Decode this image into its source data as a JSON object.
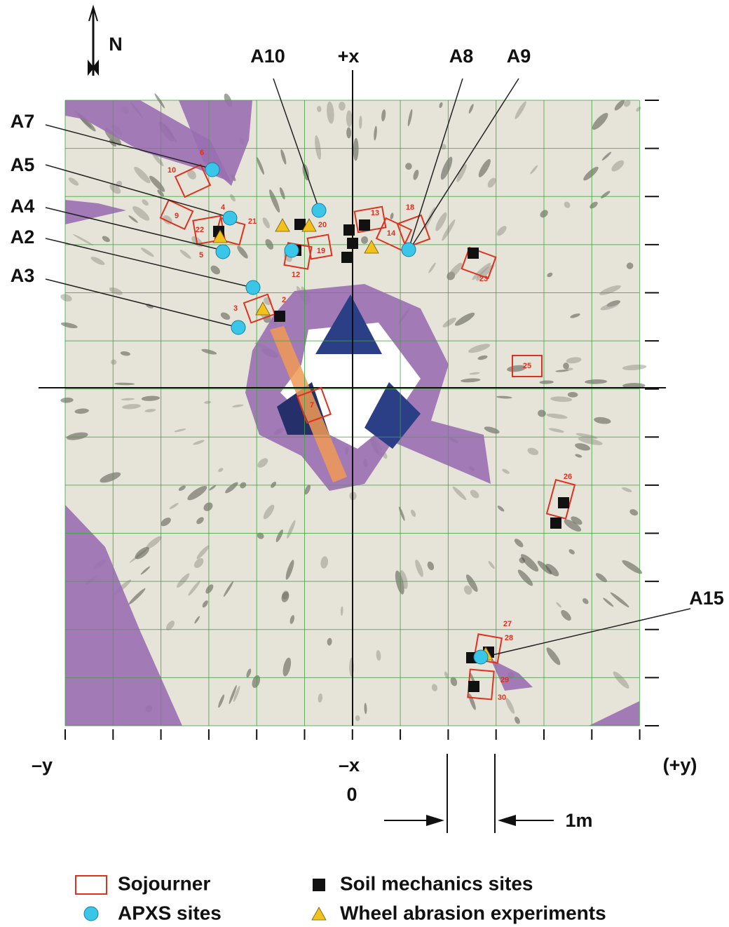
{
  "compass": "N",
  "axes": {
    "plus_x": "+x",
    "minus_x": "–x",
    "minus_y": "–y",
    "plus_y": "(+y)",
    "origin": "0",
    "scale": "1m"
  },
  "apxs_labels": [
    "A10",
    "A8",
    "A9",
    "A7",
    "A5",
    "A4",
    "A2",
    "A3",
    "A15"
  ],
  "sojourner_positions": [
    "6",
    "10",
    "9",
    "4",
    "21",
    "22",
    "5",
    "20",
    "12",
    "19",
    "13",
    "14",
    "18",
    "23",
    "2",
    "3",
    "25",
    "7",
    "26",
    "27",
    "28",
    "29",
    "30"
  ],
  "legend": [
    {
      "label": "Sojourner"
    },
    {
      "label": "APXS sites"
    },
    {
      "label": "Soil mechanics sites"
    },
    {
      "label": "Wheel abrasion experiments"
    }
  ]
}
